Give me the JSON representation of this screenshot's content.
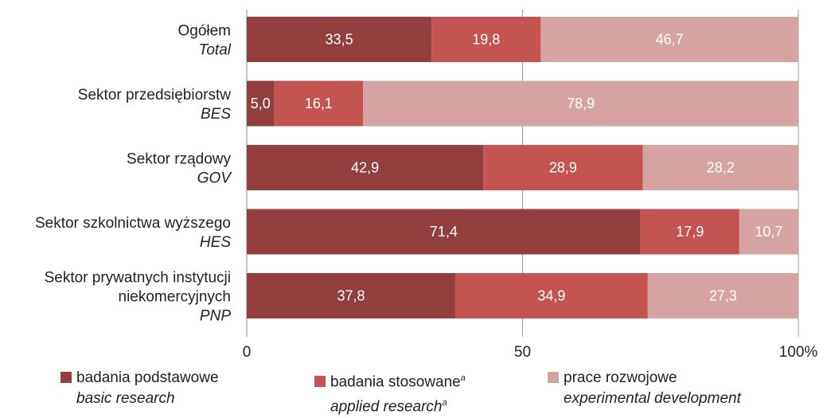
{
  "chart_data": {
    "type": "bar",
    "orientation": "horizontal",
    "stacked": true,
    "categories": [
      {
        "pl": "Ogółem",
        "en": "Total"
      },
      {
        "pl": "Sektor przedsiębiorstw",
        "en": "BES"
      },
      {
        "pl": "Sektor rządowy",
        "en": "GOV"
      },
      {
        "pl": "Sektor szkolnictwa wyższego",
        "en": "HES"
      },
      {
        "pl": [
          "Sektor prywatnych instytucji",
          "niekomercyjnych"
        ],
        "en": "PNP"
      }
    ],
    "series": [
      {
        "name_pl": "badania podstawowe",
        "name_en": "basic research",
        "color": "#943f3f",
        "values": [
          33.5,
          5.0,
          42.9,
          71.4,
          37.8
        ],
        "labels": [
          "33,5",
          "5,0",
          "42,9",
          "71,4",
          "37,8"
        ]
      },
      {
        "name_pl": "badania stosowane",
        "name_en": "applied research",
        "sup": "a",
        "color": "#c45452",
        "values": [
          19.8,
          16.1,
          28.9,
          17.9,
          34.9
        ],
        "labels": [
          "19,8",
          "16,1",
          "28,9",
          "17,9",
          "34,9"
        ]
      },
      {
        "name_pl": "prace rozwojowe",
        "name_en": "experimental development",
        "color": "#d4a3a2",
        "values": [
          46.7,
          78.9,
          28.2,
          10.7,
          27.3
        ],
        "labels": [
          "46,7",
          "78,9",
          "28,2",
          "10,7",
          "27,3"
        ]
      }
    ],
    "xlim": [
      0,
      100
    ],
    "x_ticks": [
      0,
      50,
      100
    ],
    "x_tick_labels": [
      "0",
      "50",
      "100%"
    ],
    "grid": true,
    "legend_position": "bottom"
  }
}
